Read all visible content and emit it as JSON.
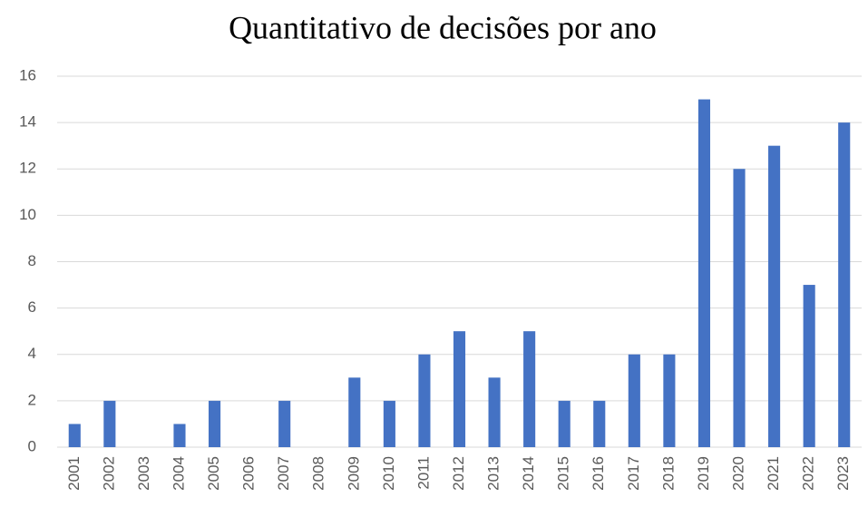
{
  "chart_data": {
    "type": "bar",
    "title": "Quantitativo de decisões por ano",
    "categories": [
      "2001",
      "2002",
      "2003",
      "2004",
      "2005",
      "2006",
      "2007",
      "2008",
      "2009",
      "2010",
      "2011",
      "2012",
      "2013",
      "2014",
      "2015",
      "2016",
      "2017",
      "2018",
      "2019",
      "2020",
      "2021",
      "2022",
      "2023"
    ],
    "values": [
      1,
      2,
      0,
      1,
      2,
      0,
      2,
      0,
      3,
      2,
      4,
      5,
      3,
      5,
      2,
      2,
      4,
      4,
      15,
      12,
      13,
      7,
      14
    ],
    "color": "#4472c4",
    "ylim": [
      0,
      16
    ],
    "yticks": [
      0,
      2,
      4,
      6,
      8,
      10,
      12,
      14,
      16
    ],
    "grid": true
  }
}
